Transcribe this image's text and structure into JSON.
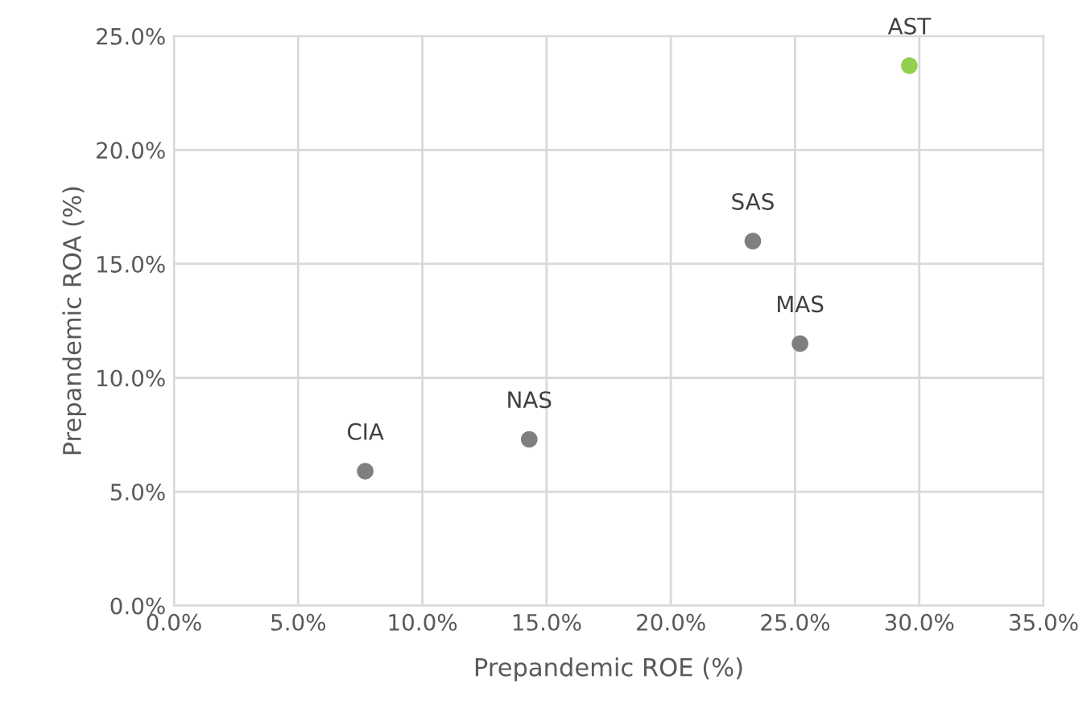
{
  "chart_data": {
    "type": "scatter",
    "xlabel": "Prepandemic ROE (%)",
    "ylabel": "Prepandemic ROA (%)",
    "x": [
      7.7,
      14.3,
      23.3,
      25.2,
      29.6
    ],
    "values": [
      5.9,
      7.3,
      16.0,
      11.5,
      23.7
    ],
    "colors": [
      "#7f7f7f",
      "#7f7f7f",
      "#7f7f7f",
      "#7f7f7f",
      "#92d050"
    ],
    "marker": "circle",
    "annotations": [
      {
        "text": "CIA",
        "x": 7.7,
        "y": 5.9
      },
      {
        "text": "NAS",
        "x": 14.3,
        "y": 7.3
      },
      {
        "text": "SAS",
        "x": 23.3,
        "y": 16.0
      },
      {
        "text": "MAS",
        "x": 25.2,
        "y": 11.5
      },
      {
        "text": "AST",
        "x": 29.6,
        "y": 23.7
      }
    ],
    "xlim": [
      0,
      35
    ],
    "ylim": [
      0,
      25
    ],
    "xticks": [
      {
        "value": 0,
        "label": "0.0%"
      },
      {
        "value": 5,
        "label": "5.0%"
      },
      {
        "value": 10,
        "label": "10.0%"
      },
      {
        "value": 15,
        "label": "15.0%"
      },
      {
        "value": 20,
        "label": "20.0%"
      },
      {
        "value": 25,
        "label": "25.0%"
      },
      {
        "value": 30,
        "label": "30.0%"
      },
      {
        "value": 35,
        "label": "35.0%"
      }
    ],
    "yticks": [
      {
        "value": 0,
        "label": "0.0%"
      },
      {
        "value": 5,
        "label": "5.0%"
      },
      {
        "value": 10,
        "label": "10.0%"
      },
      {
        "value": 15,
        "label": "15.0%"
      },
      {
        "value": 20,
        "label": "20.0%"
      },
      {
        "value": 25,
        "label": "25.0%"
      }
    ],
    "grid": true
  }
}
